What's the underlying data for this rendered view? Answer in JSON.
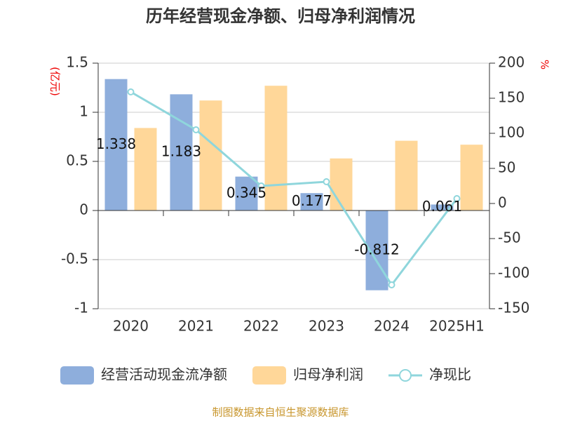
{
  "chart_data": {
    "type": "bar-line",
    "title": "历年经营现金净额、归母净利润情况",
    "y_label": "(亿元)",
    "y2_label": "%",
    "source": "制图数据来自恒生聚源数据库",
    "categories": [
      "2020",
      "2021",
      "2022",
      "2023",
      "2024",
      "2025H1"
    ],
    "series": [
      {
        "name": "经营活动现金流净额",
        "type": "bar",
        "color": "#8eaedc",
        "values": [
          1.338,
          1.183,
          0.345,
          0.177,
          -0.812,
          0.061
        ],
        "show_labels": true
      },
      {
        "name": "归母净利润",
        "type": "bar",
        "color": "#ffd799",
        "values": [
          0.84,
          1.12,
          1.27,
          0.53,
          0.71,
          0.67
        ]
      },
      {
        "name": "净现比",
        "type": "line",
        "axis": "y2",
        "color": "#8fd6dc",
        "values": [
          159,
          105,
          25,
          31,
          -116,
          7
        ]
      }
    ],
    "ylim": [
      -1,
      1.5
    ],
    "yticks": [
      -1,
      -0.5,
      0,
      0.5,
      1,
      1.5
    ],
    "y2lim": [
      -150,
      200
    ],
    "y2ticks": [
      -150,
      -100,
      -50,
      0,
      50,
      100,
      150,
      200
    ],
    "grid": true,
    "legend": "bottom"
  }
}
